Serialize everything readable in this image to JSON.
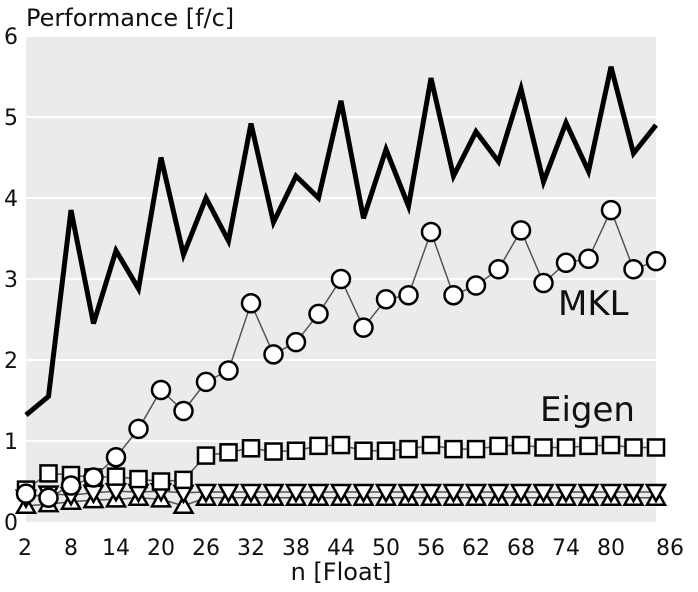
{
  "chart_data": {
    "type": "line",
    "title": "Performance [f/c]",
    "xlabel": "n [Float]",
    "ylabel": "",
    "xlim": [
      2,
      86
    ],
    "ylim": [
      0,
      6
    ],
    "xticks": [
      2,
      8,
      14,
      20,
      26,
      32,
      38,
      44,
      50,
      56,
      62,
      68,
      74,
      80,
      86
    ],
    "yticks": [
      0,
      1,
      2,
      3,
      4,
      5,
      6
    ],
    "grid": true,
    "legend": "none",
    "background": "#ebebeb",
    "x": [
      2,
      5,
      8,
      11,
      14,
      17,
      20,
      23,
      26,
      29,
      32,
      35,
      38,
      41,
      44,
      47,
      50,
      53,
      56,
      59,
      62,
      65,
      68,
      71,
      74,
      77,
      80,
      83,
      86
    ],
    "series": [
      {
        "name": "",
        "marker": "none",
        "color": "#000000",
        "values": [
          1.32,
          1.55,
          3.85,
          2.45,
          3.35,
          2.88,
          4.5,
          3.3,
          4.0,
          3.47,
          4.92,
          3.7,
          4.27,
          4.0,
          5.2,
          3.75,
          4.6,
          3.9,
          5.48,
          4.27,
          4.82,
          4.45,
          5.35,
          4.2,
          4.93,
          4.33,
          5.62,
          4.55,
          4.9
        ]
      },
      {
        "name": "MKL",
        "marker": "circle",
        "color": "#555555",
        "values": [
          0.35,
          0.3,
          0.45,
          0.55,
          0.8,
          1.15,
          1.63,
          1.37,
          1.73,
          1.87,
          2.7,
          2.07,
          2.22,
          2.57,
          3.0,
          2.4,
          2.75,
          2.8,
          3.58,
          2.8,
          2.92,
          3.12,
          3.6,
          2.95,
          3.2,
          3.25,
          3.85,
          3.12,
          3.22
        ]
      },
      {
        "name": "Eigen",
        "marker": "square",
        "color": "#555555",
        "values": [
          0.4,
          0.6,
          0.58,
          0.55,
          0.56,
          0.53,
          0.5,
          0.52,
          0.82,
          0.86,
          0.91,
          0.87,
          0.88,
          0.94,
          0.95,
          0.88,
          0.88,
          0.9,
          0.95,
          0.9,
          0.9,
          0.94,
          0.95,
          0.92,
          0.92,
          0.94,
          0.95,
          0.92,
          0.92
        ]
      },
      {
        "name": "",
        "marker": "triangle-down",
        "color": "#555555",
        "values": [
          0.3,
          0.35,
          0.33,
          0.36,
          0.38,
          0.37,
          0.38,
          0.36,
          0.37,
          0.37,
          0.37,
          0.37,
          0.37,
          0.37,
          0.37,
          0.37,
          0.37,
          0.37,
          0.37,
          0.37,
          0.37,
          0.37,
          0.37,
          0.37,
          0.37,
          0.37,
          0.37,
          0.37,
          0.37
        ]
      },
      {
        "name": "",
        "marker": "triangle-up",
        "color": "#555555",
        "values": [
          0.2,
          0.22,
          0.25,
          0.27,
          0.28,
          0.3,
          0.28,
          0.2,
          0.3,
          0.3,
          0.3,
          0.3,
          0.3,
          0.3,
          0.3,
          0.3,
          0.3,
          0.3,
          0.3,
          0.3,
          0.3,
          0.3,
          0.3,
          0.3,
          0.3,
          0.3,
          0.3,
          0.3,
          0.3
        ]
      }
    ]
  }
}
